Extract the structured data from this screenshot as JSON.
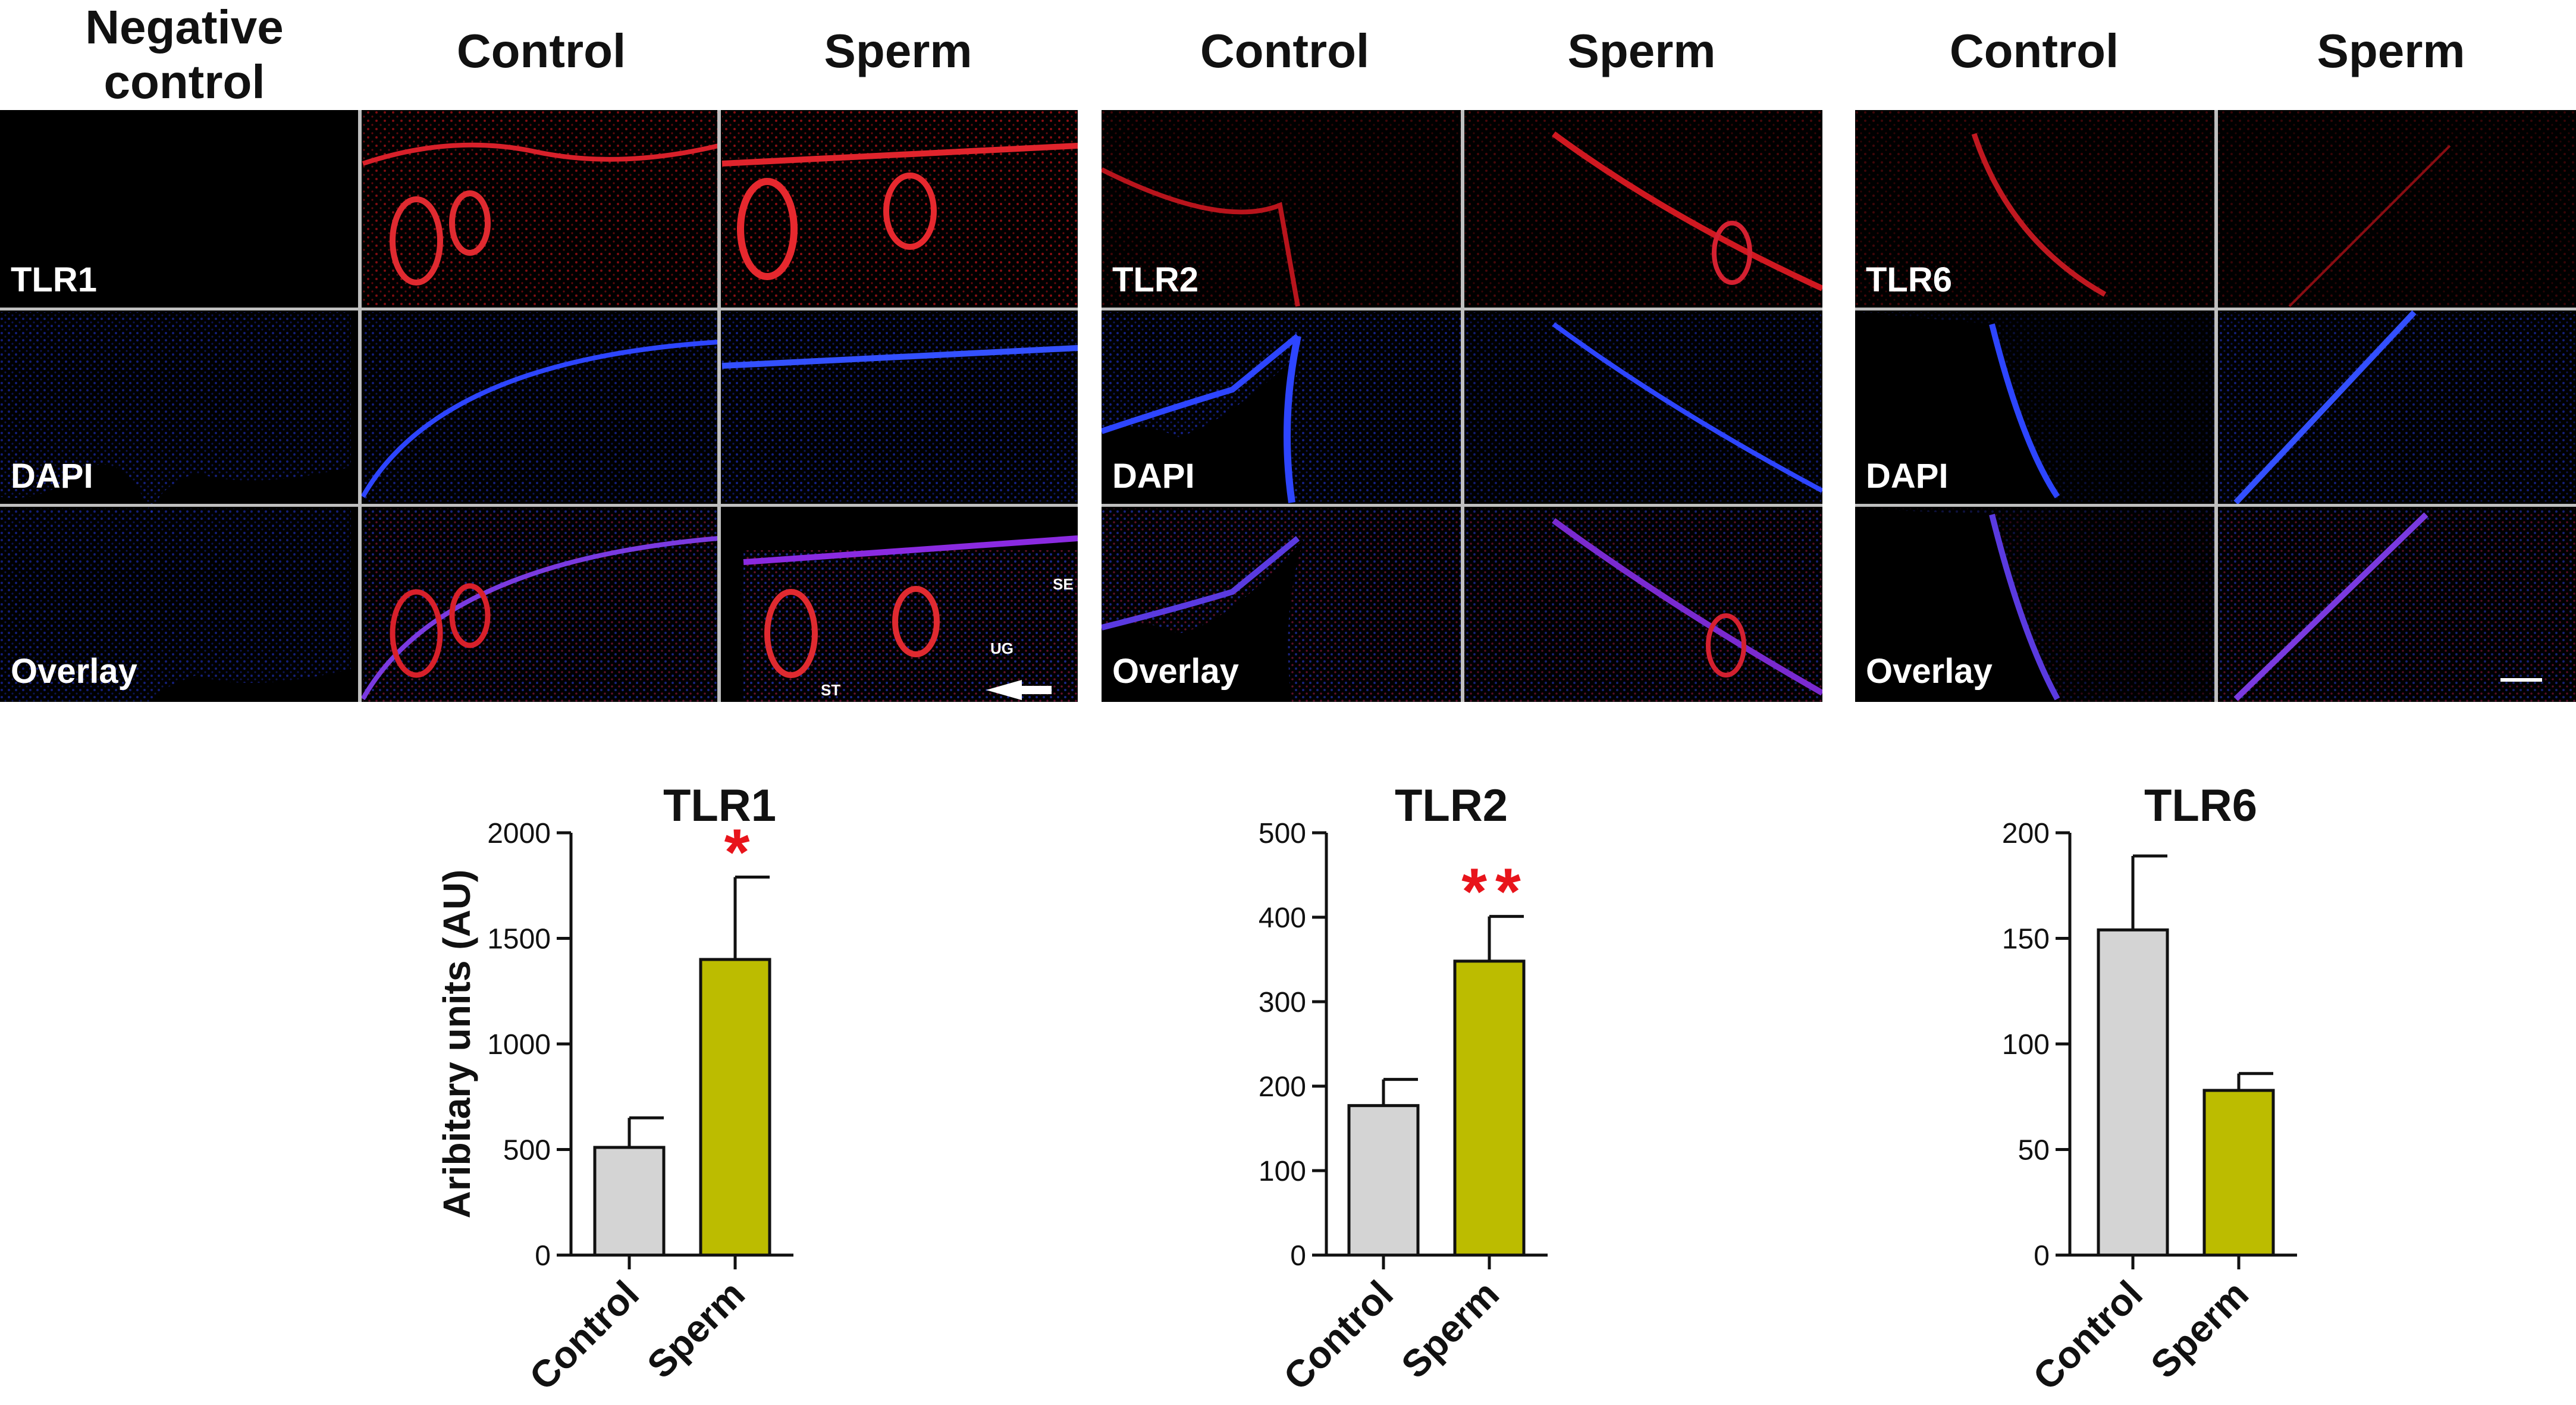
{
  "headers": {
    "negative_control": [
      "Negative",
      "control"
    ],
    "group1": {
      "control": "Control",
      "sperm": "Sperm"
    },
    "group2": {
      "control": "Control",
      "sperm": "Sperm"
    },
    "group3": {
      "control": "Control",
      "sperm": "Sperm"
    }
  },
  "row_labels": {
    "tlr1": "TLR1",
    "tlr2": "TLR2",
    "tlr6": "TLR6",
    "dapi": "DAPI",
    "overlay": "Overlay"
  },
  "annotations": {
    "se": "SE",
    "ug": "UG",
    "st": "ST"
  },
  "colors": {
    "control_bar": "#d4d4d4",
    "sperm_bar": "#bcbc00",
    "significance": "#e8141b",
    "tlr_stain": "#c8141b",
    "dapi_stain": "#1a2fe0"
  },
  "chart_data": [
    {
      "type": "bar",
      "title": "TLR1",
      "ylabel": "Aribitary units (AU)",
      "categories": [
        "Control",
        "Sperm"
      ],
      "values": [
        510,
        1400
      ],
      "errors": [
        140,
        390
      ],
      "significance": [
        "",
        "*"
      ],
      "ylim": [
        0,
        2000
      ],
      "yticks": [
        0,
        500,
        1000,
        1500,
        2000
      ]
    },
    {
      "type": "bar",
      "title": "TLR2",
      "ylabel": "",
      "categories": [
        "Control",
        "Sperm"
      ],
      "values": [
        177,
        348
      ],
      "errors": [
        31,
        53
      ],
      "significance": [
        "",
        "**"
      ],
      "ylim": [
        0,
        500
      ],
      "yticks": [
        0,
        100,
        200,
        300,
        400,
        500
      ]
    },
    {
      "type": "bar",
      "title": "TLR6",
      "ylabel": "",
      "categories": [
        "Control",
        "Sperm"
      ],
      "values": [
        154,
        78
      ],
      "errors": [
        35,
        8
      ],
      "significance": [
        "",
        ""
      ],
      "ylim": [
        0,
        200
      ],
      "yticks": [
        0,
        50,
        100,
        150,
        200
      ]
    }
  ]
}
